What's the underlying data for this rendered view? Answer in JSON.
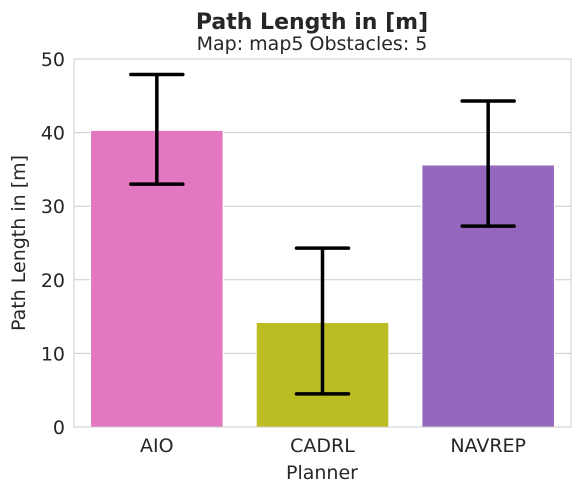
{
  "chart_data": {
    "type": "bar",
    "title": "Path Length in [m]",
    "subtitle": "Map: map5 Obstacles: 5",
    "xlabel": "Planner",
    "ylabel": "Path Length in [m]",
    "categories": [
      "AIO",
      "CADRL",
      "NAVREP"
    ],
    "values": [
      40.3,
      14.2,
      35.6
    ],
    "error_low": [
      33.0,
      4.5,
      27.3
    ],
    "error_high": [
      47.9,
      24.3,
      44.3
    ],
    "colors": [
      "#e377c2",
      "#bcbd22",
      "#9467bd"
    ],
    "ylim": [
      0,
      50
    ],
    "yticks": [
      0,
      10,
      20,
      30,
      40,
      50
    ],
    "grid": "horizontal"
  }
}
